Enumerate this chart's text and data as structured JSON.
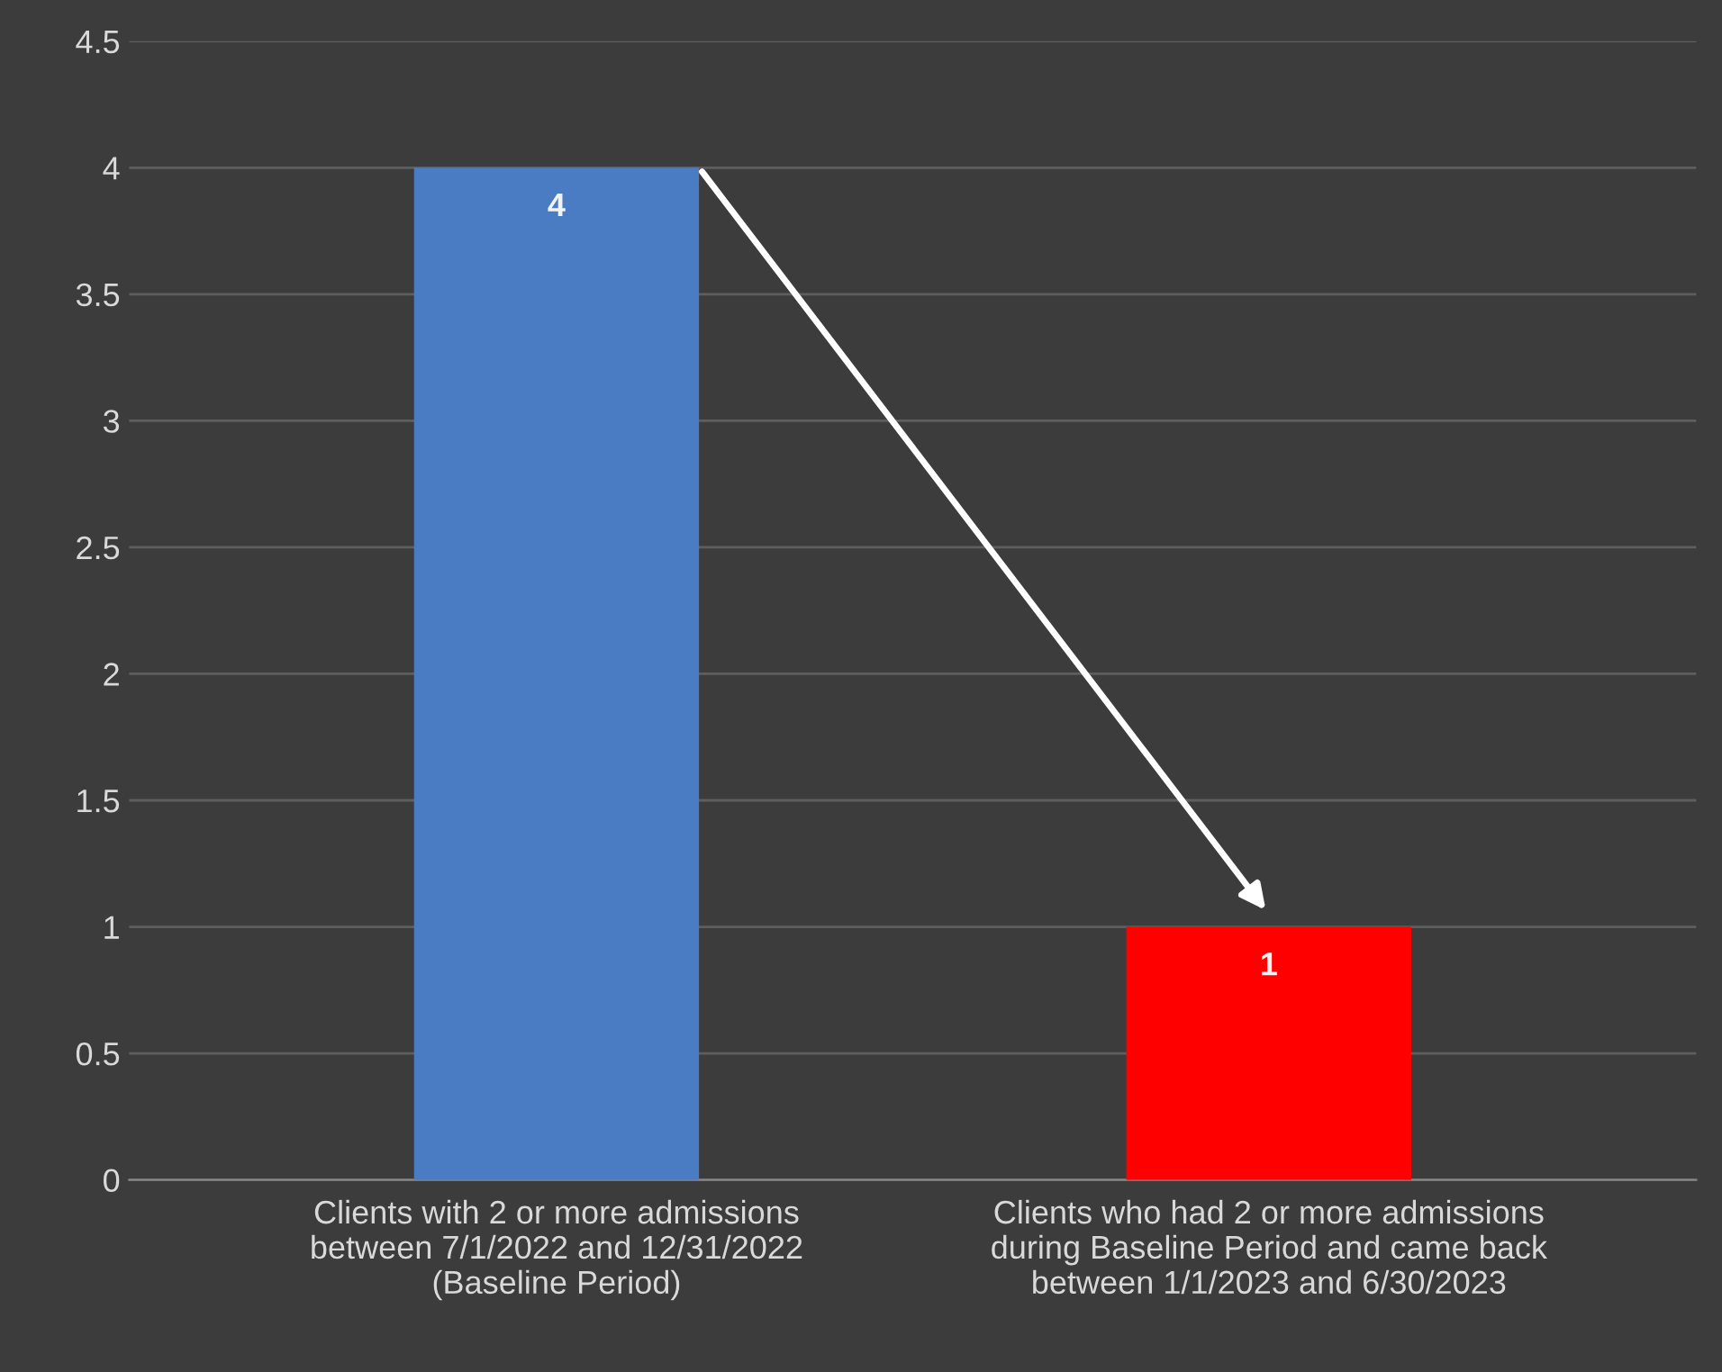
{
  "chart_data": {
    "type": "bar",
    "categories": [
      "Clients with 2 or more admissions\nbetween 7/1/2022 and 12/31/2022\n(Baseline Period)",
      "Clients who had 2 or more admissions\nduring Baseline Period and came back\nbetween 1/1/2023 and 6/30/2023"
    ],
    "values": [
      4,
      1
    ],
    "colors": [
      "#4a7cc4",
      "#ff0000"
    ],
    "ylim": [
      0,
      4.5
    ],
    "yticks": [
      0,
      0.5,
      1,
      1.5,
      2,
      2.5,
      3,
      3.5,
      4,
      4.5
    ],
    "grid": "y",
    "data_labels": true
  }
}
